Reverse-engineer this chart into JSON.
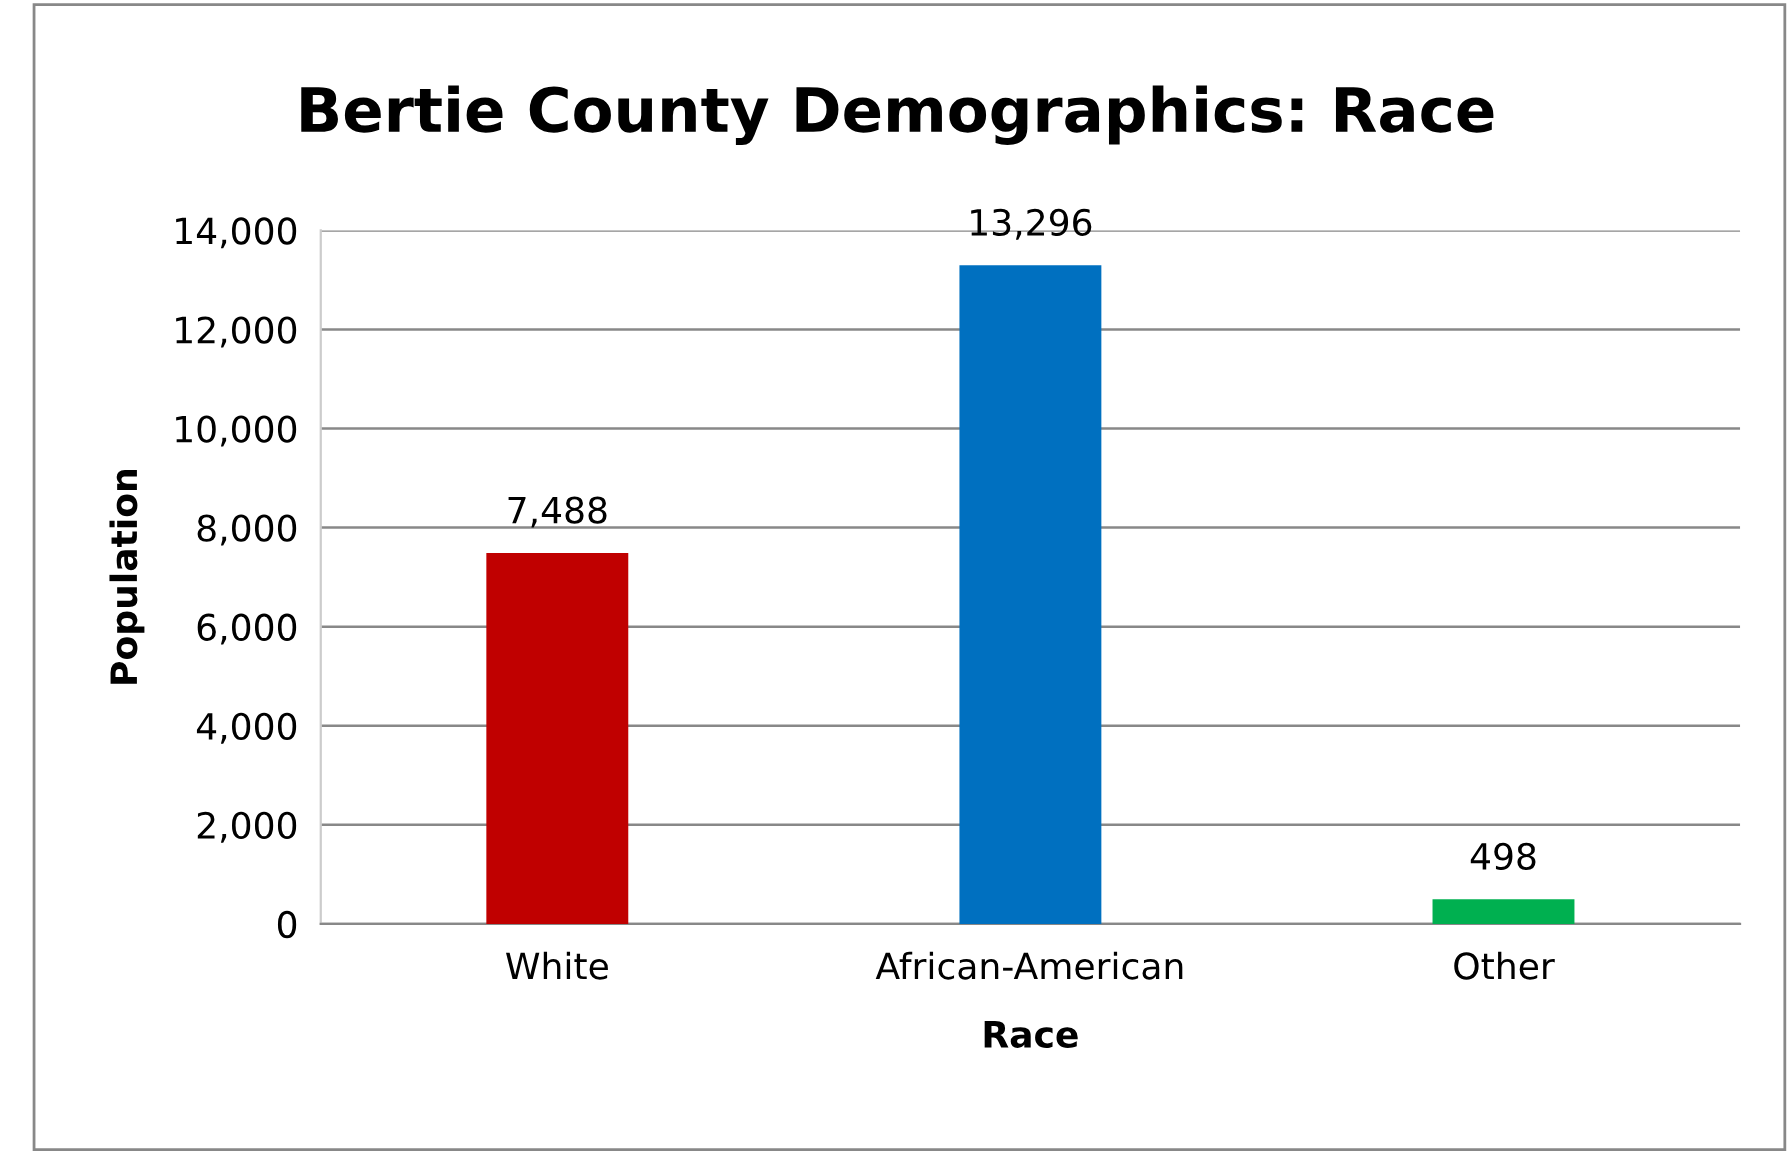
{
  "chart_data": {
    "type": "bar",
    "title": "Bertie County Demographics: Race",
    "xlabel": "Race",
    "ylabel": "Population",
    "categories": [
      "White",
      "African-American",
      "Other"
    ],
    "values": [
      7488,
      13296,
      498
    ],
    "colors": [
      "#c00000",
      "#0070c0",
      "#00b050"
    ],
    "value_labels": [
      "7,488",
      "13,296",
      "498"
    ],
    "ylim": [
      0,
      14000
    ],
    "yticks": [
      {
        "value": 0,
        "label": "0"
      },
      {
        "value": 2000,
        "label": "2,000"
      },
      {
        "value": 4000,
        "label": "4,000"
      },
      {
        "value": 6000,
        "label": "6,000"
      },
      {
        "value": 8000,
        "label": "8,000"
      },
      {
        "value": 10000,
        "label": "10,000"
      },
      {
        "value": 12000,
        "label": "12,000"
      },
      {
        "value": 14000,
        "label": "14,000"
      }
    ],
    "grid": "y",
    "legend": false
  }
}
